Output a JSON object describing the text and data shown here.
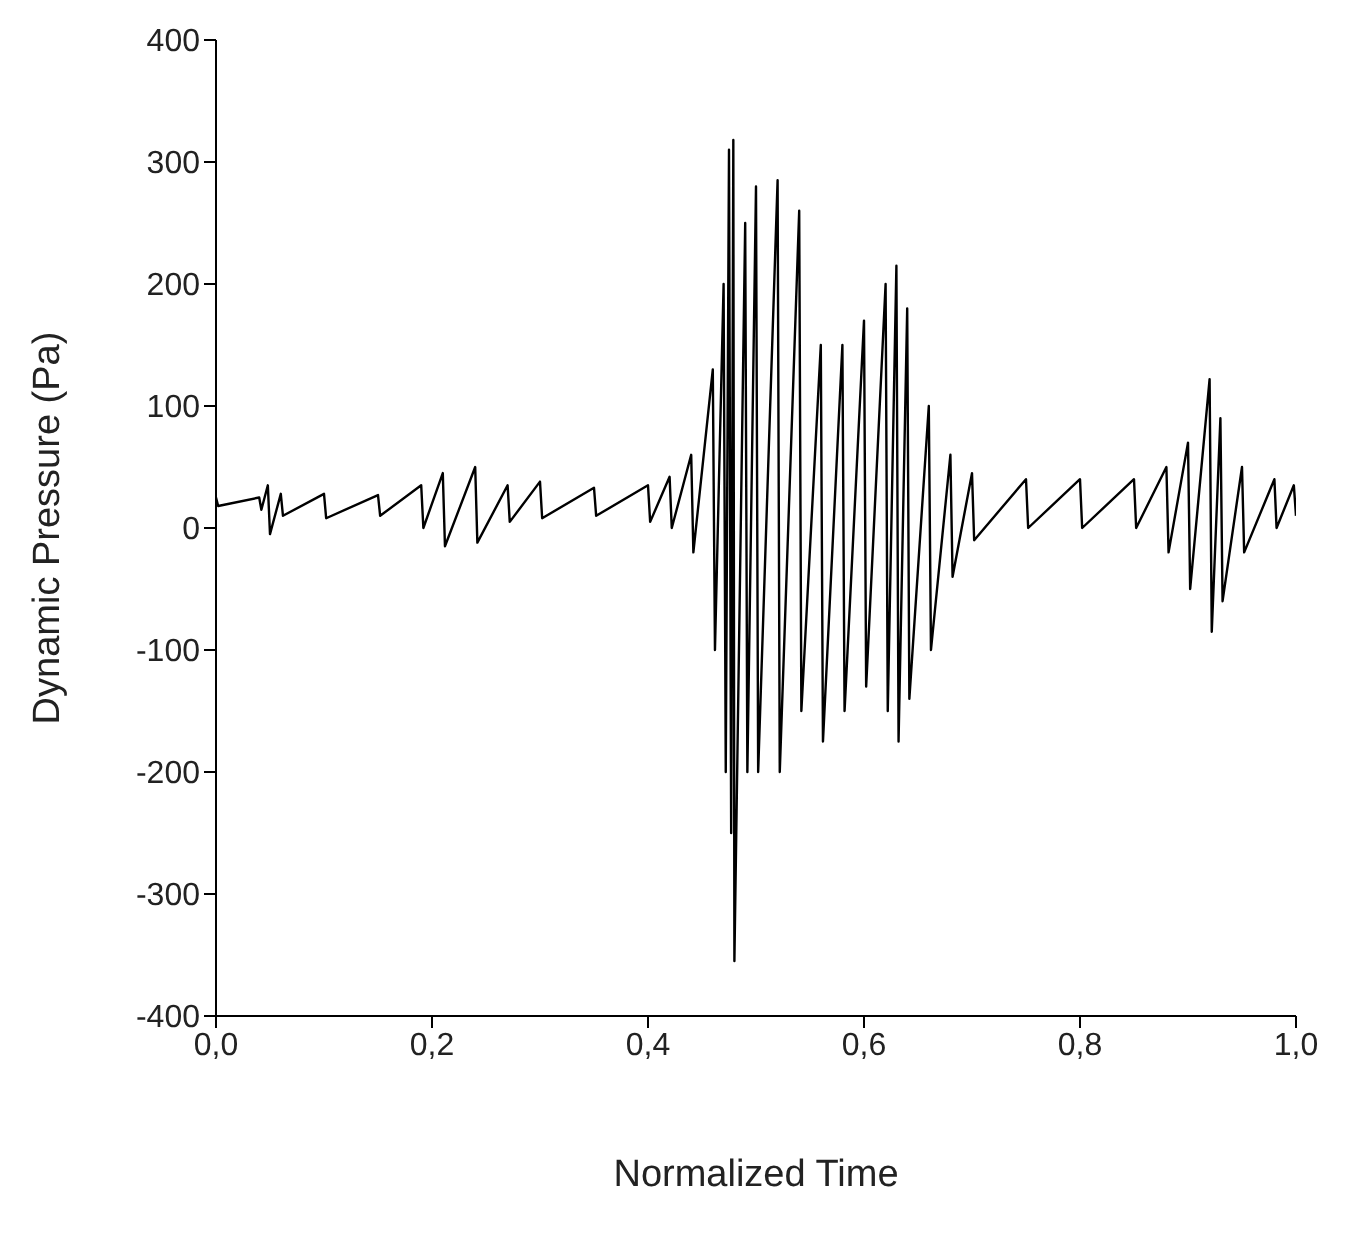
{
  "chart_data": {
    "type": "line",
    "xlabel": "Normalized Time",
    "ylabel": "Dynamic Pressure (Pa)",
    "x": [
      0,
      0.002,
      0.04,
      0.042,
      0.048,
      0.05,
      0.06,
      0.062,
      0.1,
      0.102,
      0.15,
      0.152,
      0.19,
      0.192,
      0.21,
      0.212,
      0.24,
      0.242,
      0.27,
      0.272,
      0.3,
      0.302,
      0.35,
      0.352,
      0.4,
      0.402,
      0.42,
      0.422,
      0.44,
      0.442,
      0.46,
      0.462,
      0.47,
      0.472,
      0.475,
      0.477,
      0.479,
      0.48,
      0.49,
      0.492,
      0.5,
      0.502,
      0.52,
      0.522,
      0.54,
      0.542,
      0.56,
      0.562,
      0.58,
      0.582,
      0.6,
      0.602,
      0.62,
      0.622,
      0.63,
      0.632,
      0.64,
      0.642,
      0.66,
      0.662,
      0.68,
      0.682,
      0.7,
      0.702,
      0.75,
      0.752,
      0.8,
      0.802,
      0.85,
      0.852,
      0.88,
      0.882,
      0.9,
      0.902,
      0.92,
      0.922,
      0.93,
      0.932,
      0.95,
      0.952,
      0.98,
      0.982,
      0.998,
      1
    ],
    "series": [
      {
        "color": "#000000",
        "values": [
          25,
          18,
          25,
          15,
          35,
          -5,
          28,
          10,
          28,
          8,
          27,
          10,
          35,
          0,
          45,
          -15,
          50,
          -12,
          35,
          5,
          38,
          8,
          33,
          10,
          35,
          5,
          42,
          0,
          60,
          -20,
          130,
          -100,
          200,
          -200,
          310,
          -250,
          318,
          -355,
          250,
          -200,
          280,
          -200,
          285,
          -200,
          260,
          -150,
          150,
          -175,
          150,
          -150,
          170,
          -130,
          200,
          -150,
          215,
          -175,
          180,
          -140,
          100,
          -100,
          60,
          -40,
          45,
          -10,
          40,
          0,
          40,
          0,
          40,
          0,
          50,
          -20,
          70,
          -50,
          122,
          -85,
          90,
          -60,
          50,
          -20,
          40,
          0,
          35,
          10
        ]
      }
    ],
    "xlim": [
      0,
      1
    ],
    "xticks": [
      {
        "value": 0,
        "label": "0,0"
      },
      {
        "value": 0.2,
        "label": "0,2"
      },
      {
        "value": 0.4,
        "label": "0,4"
      },
      {
        "value": 0.6,
        "label": "0,6"
      },
      {
        "value": 0.8,
        "label": "0,8"
      },
      {
        "value": 1,
        "label": "1,0"
      }
    ],
    "ylim": [
      -400,
      400
    ],
    "yticks": [
      -400,
      -300,
      -200,
      -100,
      0,
      100,
      200,
      300,
      400
    ],
    "grid": false,
    "legend": false,
    "marker": "none",
    "line_style": "solid"
  }
}
